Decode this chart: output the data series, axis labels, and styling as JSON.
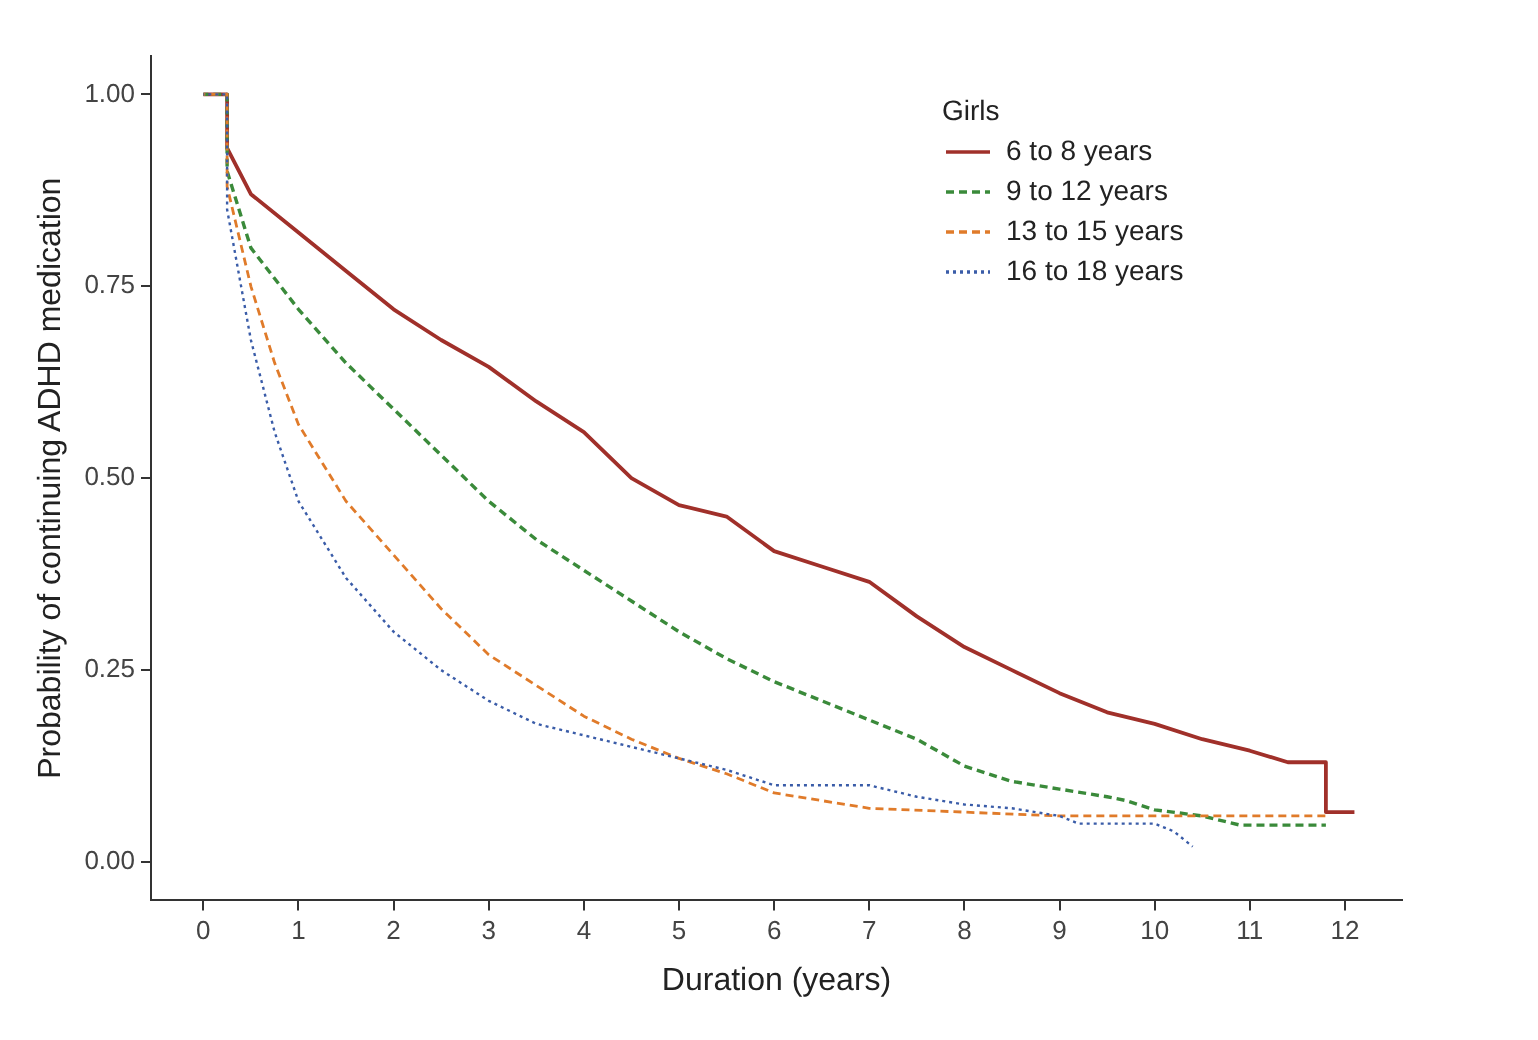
{
  "chart_data": {
    "type": "line",
    "xlabel": "Duration (years)",
    "ylabel": "Probability of continuing ADHD medication",
    "legend_title": "Girls",
    "legend": "top right",
    "grid": false,
    "marker": "none",
    "xlim": [
      -0.55,
      12.6
    ],
    "xticks": [
      0,
      1,
      2,
      3,
      4,
      5,
      6,
      7,
      8,
      9,
      10,
      11,
      12
    ],
    "ylim": [
      -0.05,
      1.05
    ],
    "yticks": [
      {
        "value": 0,
        "label": "0.00"
      },
      {
        "value": 0.25,
        "label": "0.25"
      },
      {
        "value": 0.5,
        "label": "0.50"
      },
      {
        "value": 0.75,
        "label": "0.75"
      },
      {
        "value": 1,
        "label": "1.00"
      }
    ],
    "series": [
      {
        "name": "6 to 8 years",
        "color": "#a0302a",
        "line_style": "solid",
        "x": [
          0,
          0.25,
          0.25,
          0.5,
          1,
          1.5,
          2,
          2.5,
          3,
          3.5,
          4,
          4.5,
          5,
          5.5,
          6,
          6.5,
          7,
          7.5,
          8,
          8.5,
          9,
          9.5,
          10,
          10.5,
          11,
          11.4,
          11.8,
          11.8,
          12.1
        ],
        "values": [
          1,
          1,
          0.93,
          0.87,
          0.82,
          0.77,
          0.72,
          0.68,
          0.645,
          0.6,
          0.56,
          0.5,
          0.465,
          0.45,
          0.405,
          0.385,
          0.365,
          0.32,
          0.28,
          0.25,
          0.22,
          0.195,
          0.18,
          0.16,
          0.145,
          0.13,
          0.13,
          0.065,
          0.065
        ]
      },
      {
        "name": "9 to 12 years",
        "color": "#3a8a3a",
        "line_style": "dashed",
        "x": [
          0,
          0.25,
          0.25,
          0.5,
          1,
          1.5,
          2,
          2.5,
          3,
          3.5,
          4,
          4.5,
          5,
          5.5,
          6,
          6.5,
          7,
          7.5,
          8,
          8.5,
          9,
          9.5,
          9.7,
          10,
          10.5,
          10.9,
          11.8
        ],
        "values": [
          1,
          1,
          0.9,
          0.8,
          0.72,
          0.65,
          0.59,
          0.53,
          0.47,
          0.42,
          0.38,
          0.34,
          0.3,
          0.265,
          0.235,
          0.21,
          0.185,
          0.16,
          0.125,
          0.105,
          0.095,
          0.085,
          0.08,
          0.068,
          0.06,
          0.048,
          0.048
        ]
      },
      {
        "name": "13 to 15 years",
        "color": "#e07b2a",
        "line_style": "dashed",
        "x": [
          0,
          0.25,
          0.25,
          0.5,
          0.75,
          1,
          1.5,
          2,
          2.5,
          3,
          3.5,
          4,
          4.5,
          5,
          5.5,
          6,
          6.5,
          7,
          8,
          9,
          10,
          11,
          11.8
        ],
        "values": [
          1,
          1,
          0.88,
          0.75,
          0.65,
          0.57,
          0.47,
          0.4,
          0.33,
          0.27,
          0.23,
          0.19,
          0.16,
          0.135,
          0.115,
          0.09,
          0.08,
          0.07,
          0.065,
          0.06,
          0.06,
          0.06,
          0.06
        ]
      },
      {
        "name": "16 to 18 years",
        "color": "#3a5ca8",
        "line_style": "dotted",
        "x": [
          0,
          0.25,
          0.25,
          0.5,
          0.75,
          1,
          1.5,
          2,
          2.5,
          3,
          3.5,
          4,
          4.5,
          5,
          5.5,
          6,
          7,
          7.5,
          8,
          8.5,
          9,
          9.2,
          10,
          10.2,
          10.4
        ],
        "values": [
          1,
          1,
          0.85,
          0.68,
          0.56,
          0.47,
          0.37,
          0.3,
          0.25,
          0.21,
          0.18,
          0.165,
          0.15,
          0.135,
          0.12,
          0.1,
          0.1,
          0.085,
          0.075,
          0.07,
          0.06,
          0.05,
          0.05,
          0.04,
          0.02
        ]
      }
    ]
  }
}
